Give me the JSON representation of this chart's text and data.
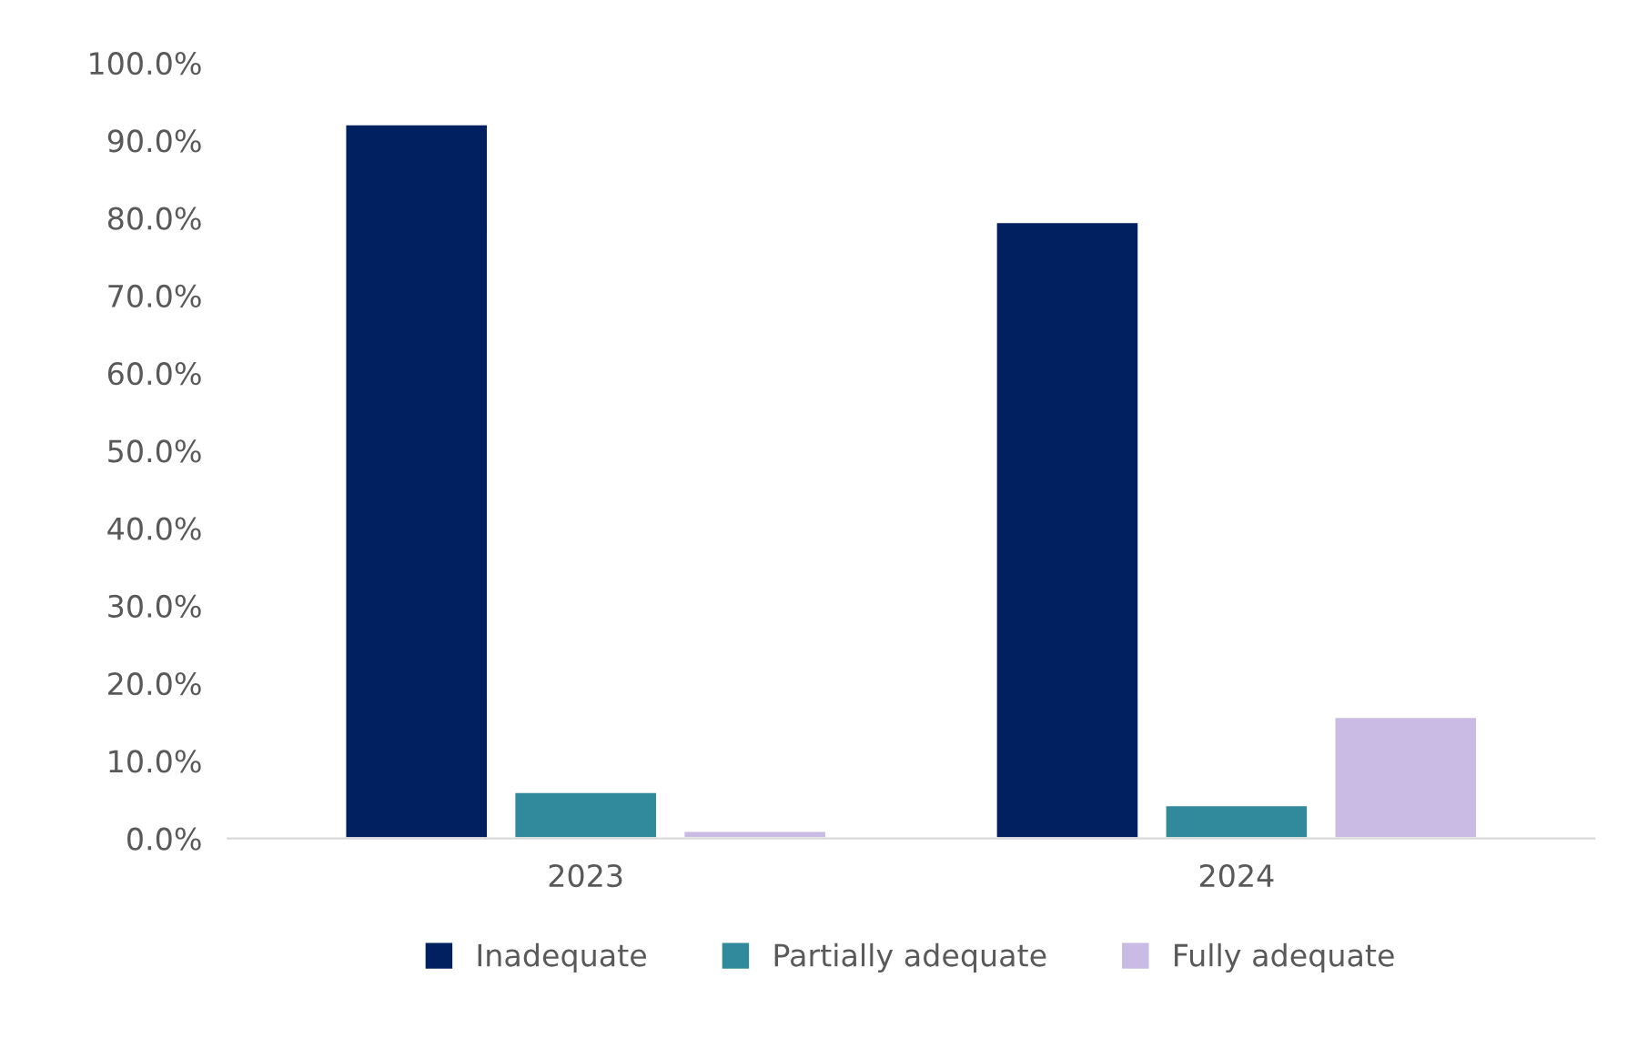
{
  "chart_data": {
    "type": "bar",
    "categories": [
      "2023",
      "2024"
    ],
    "series": [
      {
        "name": "Inadequate",
        "color": "#002060",
        "values": [
          92.1,
          79.5
        ]
      },
      {
        "name": "Partially adequate",
        "color": "#31899c",
        "values": [
          6.0,
          4.3
        ]
      },
      {
        "name": "Fully adequate",
        "color": "#c9bbe3",
        "values": [
          1.0,
          15.7
        ]
      }
    ],
    "ylim": [
      0,
      100
    ],
    "yticks": [
      {
        "value": 0,
        "label": "0.0%"
      },
      {
        "value": 10,
        "label": "10.0%"
      },
      {
        "value": 20,
        "label": "20.0%"
      },
      {
        "value": 30,
        "label": "30.0%"
      },
      {
        "value": 40,
        "label": "40.0%"
      },
      {
        "value": 50,
        "label": "50.0%"
      },
      {
        "value": 60,
        "label": "60.0%"
      },
      {
        "value": 70,
        "label": "70.0%"
      },
      {
        "value": 80,
        "label": "80.0%"
      },
      {
        "value": 90,
        "label": "90.0%"
      },
      {
        "value": 100,
        "label": "100.0%"
      }
    ],
    "grid": false,
    "legend": "bottom"
  }
}
